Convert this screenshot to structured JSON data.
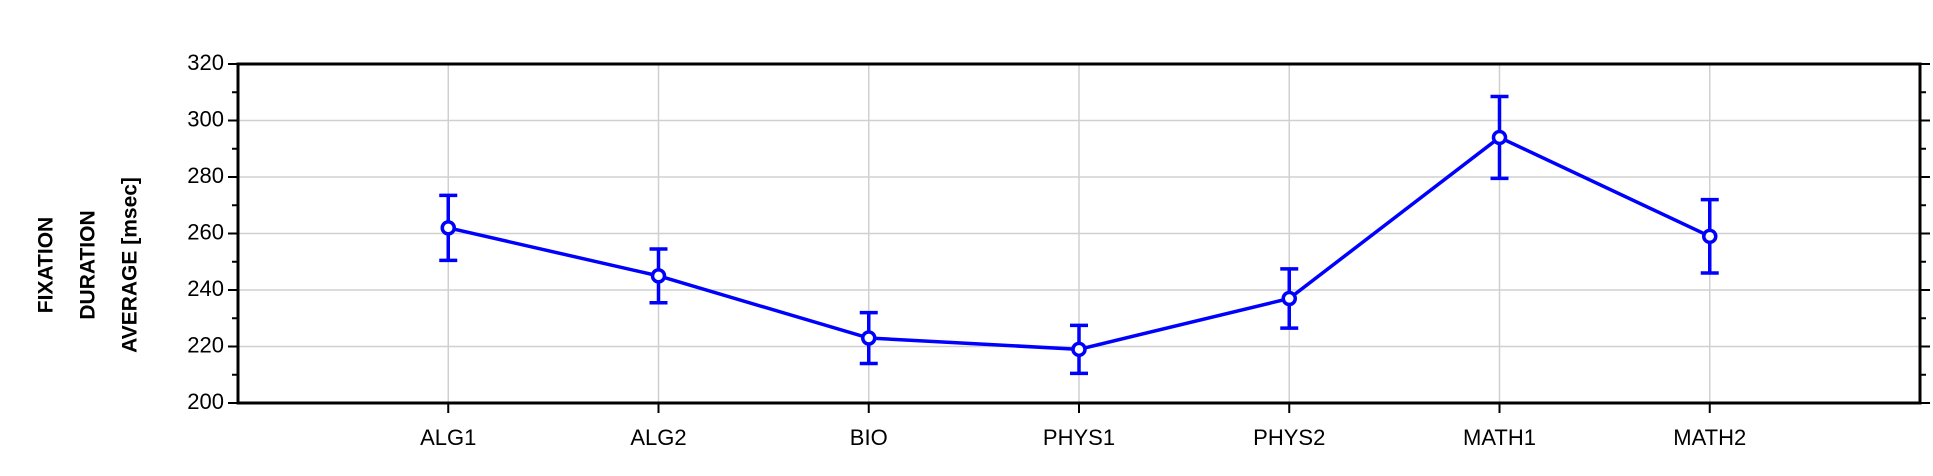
{
  "chart_data": {
    "type": "line",
    "ylabel": [
      "FIXATION",
      "DURATION",
      "AVERAGE [msec]"
    ],
    "categories": [
      "ALG1",
      "ALG2",
      "BIO",
      "PHYS1",
      "PHYS2",
      "MATH1",
      "MATH2"
    ],
    "series": [
      {
        "color": "#0000ff",
        "values": [
          262,
          245,
          223,
          219,
          237,
          294,
          259
        ],
        "errors": [
          11.5,
          9.5,
          9,
          8.5,
          10.5,
          14.5,
          13
        ]
      }
    ],
    "ylim": [
      200,
      320
    ],
    "yticks": [
      200,
      220,
      240,
      260,
      280,
      300,
      320
    ],
    "minor_yticks": [
      210,
      230,
      250,
      270,
      290,
      310
    ],
    "grid": true
  }
}
